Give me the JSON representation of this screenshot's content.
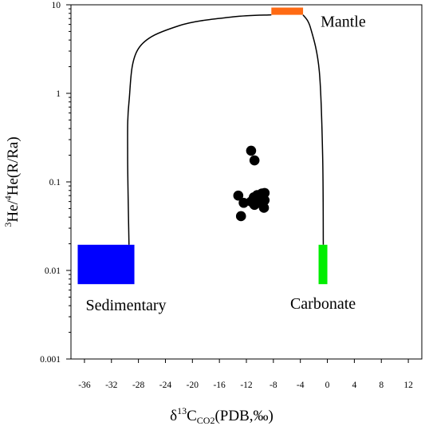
{
  "chart_data": {
    "type": "scatter",
    "xlabel": {
      "base": "δ",
      "sup": "13",
      "main": "C",
      "sub": "CO2",
      "rest": "(PDB,‰)"
    },
    "ylabel": {
      "sup1": "3",
      "part1": "He/",
      "sup2": "4",
      "part2": "He(R/Ra)"
    },
    "xlim": [
      -38,
      14
    ],
    "ylim": [
      0.001,
      10
    ],
    "yscale": "log",
    "xticks": [
      -36,
      -32,
      -28,
      -24,
      -20,
      -16,
      -12,
      -8,
      -4,
      0,
      4,
      8,
      12
    ],
    "xtick_labels": [
      "-36",
      "-32",
      "-28",
      "-24",
      "-20",
      "-16",
      "-12",
      "-8",
      "-4",
      "0",
      "4",
      "8",
      "12"
    ],
    "yticks": [
      0.001,
      0.01,
      0.1,
      1,
      10
    ],
    "ytick_labels": [
      "0.001",
      "0.01",
      "0.1",
      "1",
      "10"
    ],
    "grid": false,
    "points": [
      {
        "x": -11.3,
        "y": 0.225
      },
      {
        "x": -10.8,
        "y": 0.175
      },
      {
        "x": -13.2,
        "y": 0.07
      },
      {
        "x": -12.4,
        "y": 0.058
      },
      {
        "x": -12.8,
        "y": 0.041
      },
      {
        "x": -11.3,
        "y": 0.06
      },
      {
        "x": -10.9,
        "y": 0.067
      },
      {
        "x": -10.4,
        "y": 0.071
      },
      {
        "x": -9.7,
        "y": 0.074
      },
      {
        "x": -9.3,
        "y": 0.075
      },
      {
        "x": -9.6,
        "y": 0.063
      },
      {
        "x": -9.3,
        "y": 0.062
      },
      {
        "x": -10.3,
        "y": 0.058
      },
      {
        "x": -10.8,
        "y": 0.055
      },
      {
        "x": -9.4,
        "y": 0.051
      }
    ],
    "regions": [
      {
        "label": "Mantle",
        "color": "#ff6a13",
        "x": [
          -8.3,
          -3.6
        ],
        "y": [
          7.7,
          9.3
        ]
      },
      {
        "label": "Sedimentary",
        "color": "#0000ff",
        "x": [
          -37,
          -28.6
        ],
        "y": [
          0.007,
          0.0195
        ]
      },
      {
        "label": "Carbonate",
        "color": "#00ee00",
        "x": [
          -1.3,
          0
        ],
        "y": [
          0.007,
          0.0195
        ]
      }
    ],
    "curves": [
      {
        "from": "Sedimentary",
        "to": "Mantle",
        "points": [
          [
            -29.4,
            0.0195
          ],
          [
            -29.6,
            0.2
          ],
          [
            -29.4,
            0.8
          ],
          [
            -28,
            3.2
          ],
          [
            -22,
            5.8
          ],
          [
            -14,
            7.3
          ],
          [
            -8.3,
            7.7
          ]
        ]
      },
      {
        "from": "Mantle",
        "to": "Carbonate",
        "points": [
          [
            -3.6,
            7.7
          ],
          [
            -2.5,
            5.5
          ],
          [
            -1.2,
            1.8
          ],
          [
            -0.7,
            0.2
          ],
          [
            -0.6,
            0.0195
          ]
        ]
      }
    ],
    "point_color": "#000000"
  }
}
